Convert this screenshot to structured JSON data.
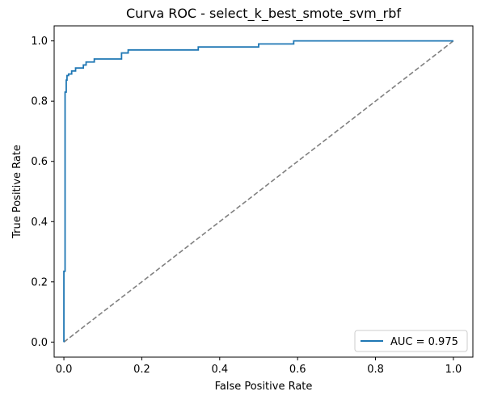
{
  "chart_data": {
    "type": "line",
    "title": "Curva ROC - select_k_best_smote_svm_rbf",
    "xlabel": "False Positive Rate",
    "ylabel": "True Positive Rate",
    "xlim": [
      -0.025,
      1.05
    ],
    "ylim": [
      -0.05,
      1.05
    ],
    "xticks": [
      "0.0",
      "0.2",
      "0.4",
      "0.6",
      "0.8",
      "1.0"
    ],
    "yticks": [
      "0.0",
      "0.2",
      "0.4",
      "0.6",
      "0.8",
      "1.0"
    ],
    "grid": false,
    "legend_position": "lower-right",
    "series": [
      {
        "name": "AUC = 0.975",
        "color": "#1f77b4",
        "style": "solid",
        "x": [
          0.0,
          0.0,
          0.003,
          0.003,
          0.006,
          0.006,
          0.008,
          0.008,
          0.012,
          0.012,
          0.02,
          0.02,
          0.03,
          0.03,
          0.05,
          0.05,
          0.057,
          0.057,
          0.078,
          0.078,
          0.148,
          0.148,
          0.165,
          0.165,
          0.345,
          0.345,
          0.5,
          0.5,
          0.59,
          0.59,
          1.0
        ],
        "y": [
          0.0,
          0.235,
          0.235,
          0.83,
          0.83,
          0.87,
          0.87,
          0.885,
          0.885,
          0.89,
          0.89,
          0.9,
          0.9,
          0.91,
          0.91,
          0.92,
          0.92,
          0.93,
          0.93,
          0.94,
          0.94,
          0.96,
          0.96,
          0.97,
          0.97,
          0.98,
          0.98,
          0.99,
          0.99,
          1.0,
          1.0
        ]
      },
      {
        "name": "",
        "color": "#808080",
        "style": "dashed",
        "x": [
          0.0,
          1.0
        ],
        "y": [
          0.0,
          1.0
        ]
      }
    ]
  }
}
